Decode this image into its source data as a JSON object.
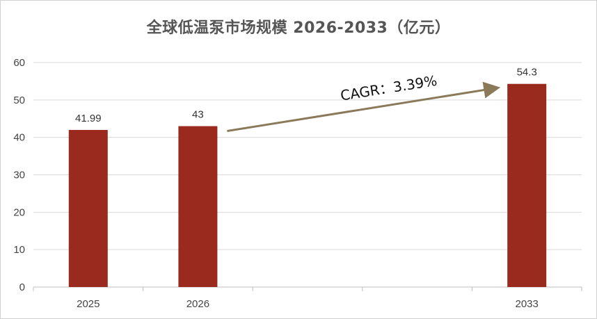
{
  "chart_data": {
    "type": "bar",
    "title": "全球低温泵市场规模 2026-2033（亿元）",
    "categories": [
      "2025",
      "2026",
      "",
      "",
      "2033"
    ],
    "values": [
      41.99,
      43,
      null,
      null,
      54.3
    ],
    "data_labels": [
      "41.99",
      "43",
      "",
      "",
      "54.3"
    ],
    "ylim": [
      0,
      60
    ],
    "yticks": [
      0,
      10,
      20,
      30,
      40,
      50,
      60
    ],
    "grid": true,
    "legend": "none",
    "bar_color": "#9b2a1e",
    "annotation": {
      "text": "CAGR：3.39%",
      "from_category": "2026",
      "to_category": "2033",
      "arrow_color": "#8b7a5a"
    }
  }
}
